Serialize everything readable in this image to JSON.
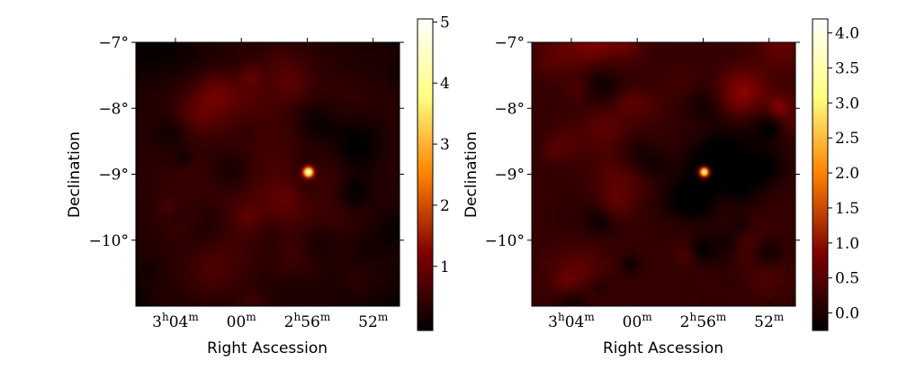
{
  "chart_data": [
    {
      "type": "heatmap",
      "title": "",
      "xlabel": "Right Ascession",
      "ylabel": "Declination",
      "x_ticks": [
        {
          "h": "3",
          "m": "04",
          "value_deg": 46.0
        },
        {
          "h": "",
          "m": "00",
          "value_deg": 45.0
        },
        {
          "h": "2",
          "m": "56",
          "value_deg": 44.0
        },
        {
          "h": "",
          "m": "52",
          "value_deg": 43.0
        }
      ],
      "y_ticks": [
        {
          "label": "−7°",
          "value": -7
        },
        {
          "label": "−8°",
          "value": -8
        },
        {
          "label": "−9°",
          "value": -9
        },
        {
          "label": "−10°",
          "value": -10
        }
      ],
      "ra_range_deg": [
        46.6,
        42.6
      ],
      "dec_range": [
        -11.0,
        -7.0
      ],
      "colormap": "afmhot",
      "colorbar": {
        "min": -0.05,
        "max": 5.05,
        "ticks": [
          {
            "label": "1",
            "value": 1
          },
          {
            "label": "2",
            "value": 2
          },
          {
            "label": "3",
            "value": 3
          },
          {
            "label": "4",
            "value": 4
          },
          {
            "label": "5",
            "value": 5
          }
        ]
      },
      "source": {
        "ra_deg": 44.0,
        "dec": -8.95,
        "peak": 5.0
      },
      "background_level": 0.55,
      "grid": false
    },
    {
      "type": "heatmap",
      "title": "",
      "xlabel": "Right Ascession",
      "ylabel": "Declination",
      "x_ticks": [
        {
          "h": "3",
          "m": "04",
          "value_deg": 46.0
        },
        {
          "h": "",
          "m": "00",
          "value_deg": 45.0
        },
        {
          "h": "2",
          "m": "56",
          "value_deg": 44.0
        },
        {
          "h": "",
          "m": "52",
          "value_deg": 43.0
        }
      ],
      "y_ticks": [
        {
          "label": "−7°",
          "value": -7
        },
        {
          "label": "−8°",
          "value": -8
        },
        {
          "label": "−9°",
          "value": -9
        },
        {
          "label": "−10°",
          "value": -10
        }
      ],
      "ra_range_deg": [
        46.6,
        42.6
      ],
      "dec_range": [
        -11.0,
        -7.0
      ],
      "colormap": "afmhot",
      "colorbar": {
        "min": -0.25,
        "max": 4.2,
        "ticks": [
          {
            "label": "0.0",
            "value": 0.0
          },
          {
            "label": "0.5",
            "value": 0.5
          },
          {
            "label": "1.0",
            "value": 1.0
          },
          {
            "label": "1.5",
            "value": 1.5
          },
          {
            "label": "2.0",
            "value": 2.0
          },
          {
            "label": "2.5",
            "value": 2.5
          },
          {
            "label": "3.0",
            "value": 3.0
          },
          {
            "label": "3.5",
            "value": 3.5
          },
          {
            "label": "4.0",
            "value": 4.0
          }
        ]
      },
      "source": {
        "ra_deg": 44.0,
        "dec": -8.95,
        "peak": 4.0
      },
      "background_level": 0.2,
      "grid": false
    }
  ]
}
